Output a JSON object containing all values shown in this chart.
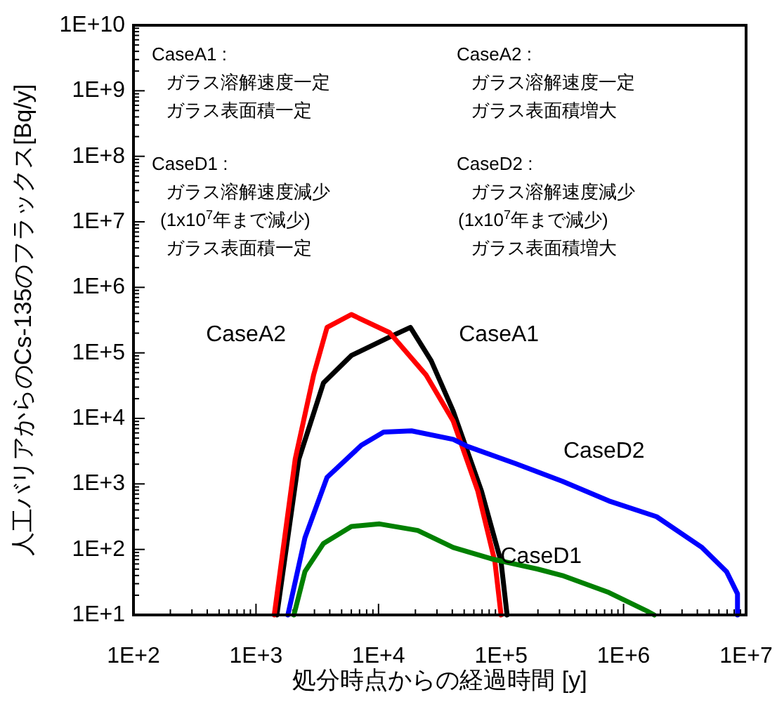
{
  "chart_data": {
    "type": "line",
    "xlabel": "処分時点からの経過時間 [y]",
    "ylabel": "人工バリアからのCs-135のフラックス[Bq/y]",
    "log": "xy",
    "grid": false,
    "marker": "none",
    "line_style": "solid",
    "xlim": [
      100,
      10000000
    ],
    "ylim": [
      10,
      10000000000
    ],
    "xticks": [
      {
        "value": 100,
        "label": "1E+2"
      },
      {
        "value": 1000,
        "label": "1E+3"
      },
      {
        "value": 10000,
        "label": "1E+4"
      },
      {
        "value": 100000,
        "label": "1E+5"
      },
      {
        "value": 1000000,
        "label": "1E+6"
      },
      {
        "value": 10000000,
        "label": "1E+7"
      }
    ],
    "yticks": [
      {
        "value": 10,
        "label": "1E+1"
      },
      {
        "value": 100,
        "label": "1E+2"
      },
      {
        "value": 1000,
        "label": "1E+3"
      },
      {
        "value": 10000,
        "label": "1E+4"
      },
      {
        "value": 100000,
        "label": "1E+5"
      },
      {
        "value": 1000000,
        "label": "1E+6"
      },
      {
        "value": 10000000,
        "label": "1E+7"
      },
      {
        "value": 100000000,
        "label": "1E+8"
      },
      {
        "value": 1000000000,
        "label": "1E+9"
      },
      {
        "value": 10000000000,
        "label": "1E+10"
      }
    ],
    "series": [
      {
        "name": "CaseA1",
        "color": "#000000",
        "x": [
          1480,
          2240,
          3550,
          6000,
          12300,
          18200,
          26900,
          40700,
          69200,
          100000,
          112000
        ],
        "values": [
          10,
          2400,
          34700,
          91200,
          174000,
          245000,
          75900,
          12900,
          780,
          65,
          10
        ]
      },
      {
        "name": "CaseA2",
        "color": "#ff0000",
        "x": [
          1410,
          2090,
          2950,
          3800,
          6000,
          12300,
          24500,
          40700,
          64600,
          89100,
          100000
        ],
        "values": [
          10,
          2400,
          45700,
          245000,
          385000,
          204000,
          45700,
          9100,
          780,
          65,
          10
        ]
      },
      {
        "name": "CaseD1",
        "color": "#008000",
        "x": [
          2040,
          2510,
          3550,
          6000,
          10200,
          20900,
          40700,
          83200,
          200000,
          316000,
          759000,
          1550000,
          1780000
        ],
        "values": [
          10,
          46,
          123,
          224,
          245,
          195,
          107,
          72,
          50,
          40,
          22,
          11.5,
          10
        ]
      },
      {
        "name": "CaseD2",
        "color": "#0000ff",
        "x": [
          1820,
          2510,
          3800,
          7240,
          11000,
          18600,
          40700,
          53700,
          132000,
          316000,
          759000,
          1860000,
          4370000,
          6920000,
          8510000,
          8510000
        ],
        "values": [
          10,
          151,
          1260,
          3890,
          6170,
          6460,
          4790,
          3720,
          2040,
          1100,
          550,
          316,
          107,
          46,
          21,
          10
        ]
      }
    ],
    "annotations": [
      "CaseA1 :",
      "ガラス溶解速度一定",
      "ガラス表面積一定",
      "CaseA2 :",
      "ガラス溶解速度一定",
      "ガラス表面積増大",
      "CaseD1 :",
      "ガラス溶解速度減少",
      "(1x10$^{7}$年まで減少)",
      "ガラス表面積一定",
      "CaseD2 :",
      "ガラス溶解速度減少",
      "(1x10$^{7}$年まで減少)",
      "ガラス表面積増大"
    ]
  }
}
